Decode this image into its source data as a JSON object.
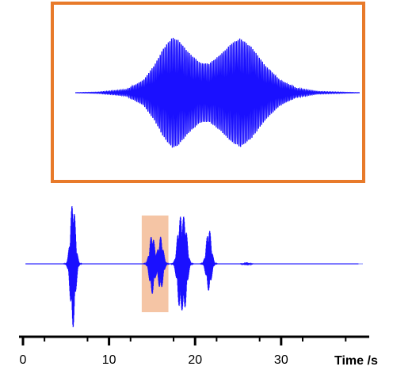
{
  "chart_data": {
    "type": "line",
    "title": "",
    "xlabel": "Time /s",
    "ylabel": "",
    "xlim": [
      0,
      39.5
    ],
    "ticks": [
      {
        "value": 0,
        "label": "0"
      },
      {
        "value": 10,
        "label": "10"
      },
      {
        "value": 20,
        "label": "20"
      },
      {
        "value": 30,
        "label": "30"
      }
    ],
    "grid": false,
    "series_color": "#1a10ff",
    "baseline_color": "#9aa0ff",
    "bursts": [
      {
        "center": 5.8,
        "amp_up": 0.85,
        "amp_down": 0.85
      },
      {
        "center": 15.0,
        "amp_up": 0.4,
        "amp_down": 0.4
      },
      {
        "center": 16.0,
        "amp_up": 0.36,
        "amp_down": 0.36
      },
      {
        "center": 18.2,
        "amp_up": 0.55,
        "amp_down": 0.55
      },
      {
        "center": 18.8,
        "amp_up": 0.55,
        "amp_down": 0.55
      },
      {
        "center": 21.6,
        "amp_up": 0.48,
        "amp_down": 0.36
      },
      {
        "center": 26.0,
        "amp_up": 0.02,
        "amp_down": 0.02
      }
    ],
    "highlight": {
      "x0": 13.8,
      "x1": 16.9,
      "color": "#f5c5a5"
    },
    "zoom": {
      "frame_color": "#e87a2a",
      "x_range": [
        13.8,
        16.9
      ],
      "envelope": [
        {
          "t": 0.0,
          "a": 0.0
        },
        {
          "t": 0.08,
          "a": 0.01
        },
        {
          "t": 0.18,
          "a": 0.05
        },
        {
          "t": 0.24,
          "a": 0.2
        },
        {
          "t": 0.28,
          "a": 0.45
        },
        {
          "t": 0.31,
          "a": 0.7
        },
        {
          "t": 0.34,
          "a": 0.87
        },
        {
          "t": 0.36,
          "a": 0.84
        },
        {
          "t": 0.4,
          "a": 0.63
        },
        {
          "t": 0.44,
          "a": 0.47
        },
        {
          "t": 0.47,
          "a": 0.46
        },
        {
          "t": 0.51,
          "a": 0.6
        },
        {
          "t": 0.55,
          "a": 0.78
        },
        {
          "t": 0.58,
          "a": 0.86
        },
        {
          "t": 0.62,
          "a": 0.72
        },
        {
          "t": 0.67,
          "a": 0.42
        },
        {
          "t": 0.72,
          "a": 0.2
        },
        {
          "t": 0.78,
          "a": 0.07
        },
        {
          "t": 0.85,
          "a": 0.02
        },
        {
          "t": 1.0,
          "a": 0.0
        }
      ]
    }
  }
}
